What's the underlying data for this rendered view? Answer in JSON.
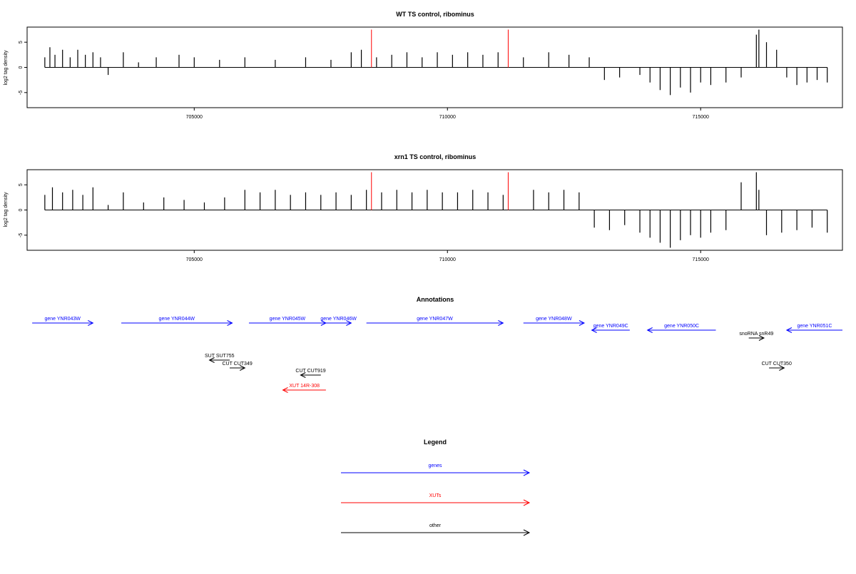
{
  "panels": [
    {
      "title": "WT TS control, ribominus",
      "ylabel": "log2 tag density"
    },
    {
      "title": "xrn1 TS control, ribominus",
      "ylabel": "log2 tag density"
    }
  ],
  "annotations_title": "Annotations",
  "legend": {
    "title": "Legend",
    "items": [
      {
        "label": "genes",
        "color": "#0000ff"
      },
      {
        "label": "XUTs",
        "color": "#ff0000"
      },
      {
        "label": "other",
        "color": "#000000"
      }
    ]
  },
  "colors": {
    "gene": "#0000ff",
    "xut": "#ff0000",
    "other": "#000000",
    "marker": "#ff0000"
  },
  "chart_data": [
    {
      "type": "bar",
      "title": "WT TS control, ribominus",
      "xlabel": "",
      "ylabel": "log2 tag density",
      "xlim": [
        701700,
        717800
      ],
      "ylim": [
        -8,
        8
      ],
      "x_ticks": [
        705000,
        710000,
        715000
      ],
      "y_ticks": [
        -5,
        0,
        5
      ],
      "red_markers": [
        708500,
        711200
      ],
      "series": [
        {
          "x": [
            702050,
            702150,
            702250,
            702400,
            702550,
            702700,
            702850,
            703000,
            703150,
            703300,
            703600,
            703900,
            704250,
            704700,
            705000,
            705500,
            706000,
            706600,
            707200,
            707700,
            708100,
            708300,
            708600,
            708900,
            709200,
            709500,
            709800,
            710100,
            710400,
            710700,
            711000,
            711500,
            712000,
            712400,
            712800,
            713100,
            713400,
            713800,
            714000,
            714200,
            714400,
            714600,
            714800,
            715000,
            715200,
            715500,
            715800,
            716100,
            716150,
            716300,
            716500,
            716700,
            716900,
            717100,
            717300,
            717500
          ],
          "values": [
            2.0,
            4.0,
            2.5,
            3.5,
            2.0,
            3.5,
            2.5,
            3.0,
            2.0,
            -1.5,
            3.0,
            1.0,
            2.0,
            2.5,
            2.0,
            1.5,
            2.0,
            1.5,
            2.0,
            1.5,
            3.0,
            3.5,
            2.0,
            2.5,
            3.0,
            2.0,
            3.0,
            2.5,
            3.0,
            2.5,
            3.0,
            2.0,
            3.0,
            2.5,
            2.0,
            -2.5,
            -2.0,
            -1.5,
            -3.0,
            -4.5,
            -5.5,
            -4.0,
            -5.0,
            -3.0,
            -3.5,
            -3.0,
            -2.0,
            6.5,
            7.5,
            5.0,
            3.5,
            -2.0,
            -3.5,
            -3.0,
            -2.5,
            -3.0
          ]
        }
      ]
    },
    {
      "type": "bar",
      "title": "xrn1 TS control, ribominus",
      "xlabel": "",
      "ylabel": "log2 tag density",
      "xlim": [
        701700,
        717800
      ],
      "ylim": [
        -8,
        8
      ],
      "x_ticks": [
        705000,
        710000,
        715000
      ],
      "y_ticks": [
        -5,
        0,
        5
      ],
      "red_markers": [
        708500,
        711200
      ],
      "series": [
        {
          "x": [
            702050,
            702200,
            702400,
            702600,
            702800,
            703000,
            703300,
            703600,
            704000,
            704400,
            704800,
            705200,
            705600,
            706000,
            706300,
            706600,
            706900,
            707200,
            707500,
            707800,
            708100,
            708400,
            708700,
            709000,
            709300,
            709600,
            709900,
            710200,
            710500,
            710800,
            711100,
            711700,
            712000,
            712300,
            712600,
            712900,
            713200,
            713500,
            713800,
            714000,
            714200,
            714400,
            714600,
            714800,
            715000,
            715200,
            715500,
            715800,
            716100,
            716150,
            716300,
            716600,
            716900,
            717200,
            717500
          ],
          "values": [
            3.0,
            4.5,
            3.5,
            4.0,
            3.0,
            4.5,
            1.0,
            3.5,
            1.5,
            2.5,
            2.0,
            1.5,
            2.5,
            4.0,
            3.5,
            4.0,
            3.0,
            3.5,
            3.0,
            3.5,
            3.0,
            4.0,
            3.5,
            4.0,
            3.5,
            4.0,
            3.5,
            3.5,
            4.0,
            3.5,
            3.0,
            4.0,
            3.5,
            4.0,
            3.5,
            -3.5,
            -4.0,
            -3.0,
            -4.5,
            -5.5,
            -6.5,
            -7.5,
            -6.0,
            -5.0,
            -5.5,
            -4.5,
            -4.0,
            5.5,
            7.5,
            4.0,
            -5.0,
            -4.5,
            -4.0,
            -3.5,
            -4.5
          ]
        }
      ]
    }
  ],
  "features": [
    {
      "label": "gene YNR043W",
      "kind": "gene",
      "strand": "+",
      "start": 701800,
      "end": 703000
    },
    {
      "label": "gene YNR044W",
      "kind": "gene",
      "strand": "+",
      "start": 703560,
      "end": 705750
    },
    {
      "label": "gene YNR045W",
      "kind": "gene",
      "strand": "+",
      "start": 706080,
      "end": 707600
    },
    {
      "label": "gene YNR046W",
      "kind": "gene",
      "strand": "+",
      "start": 707600,
      "end": 708100
    },
    {
      "label": "gene YNR047W",
      "kind": "gene",
      "strand": "+",
      "start": 708400,
      "end": 711100
    },
    {
      "label": "gene YNR048W",
      "kind": "gene",
      "strand": "+",
      "start": 711500,
      "end": 712700
    },
    {
      "label": "gene YNR049C",
      "kind": "gene",
      "strand": "-",
      "start": 712850,
      "end": 713600
    },
    {
      "label": "gene YNR050C",
      "kind": "gene",
      "strand": "-",
      "start": 713950,
      "end": 715300
    },
    {
      "label": "gene YNR051C",
      "kind": "gene",
      "strand": "-",
      "start": 716700,
      "end": 717800
    },
    {
      "label": "snoRNA snR49",
      "kind": "other",
      "strand": "+",
      "start": 715950,
      "end": 716250
    },
    {
      "label": "SUT SUT755",
      "kind": "other",
      "strand": "-",
      "start": 705300,
      "end": 705700
    },
    {
      "label": "CUT CUT349",
      "kind": "other",
      "strand": "+",
      "start": 705700,
      "end": 706000
    },
    {
      "label": "CUT CUT919",
      "kind": "other",
      "strand": "-",
      "start": 707100,
      "end": 707500
    },
    {
      "label": "XUT 14R-308",
      "kind": "xut",
      "strand": "-",
      "start": 706750,
      "end": 707600
    },
    {
      "label": "CUT CUT350",
      "kind": "other",
      "strand": "+",
      "start": 716350,
      "end": 716650
    }
  ]
}
